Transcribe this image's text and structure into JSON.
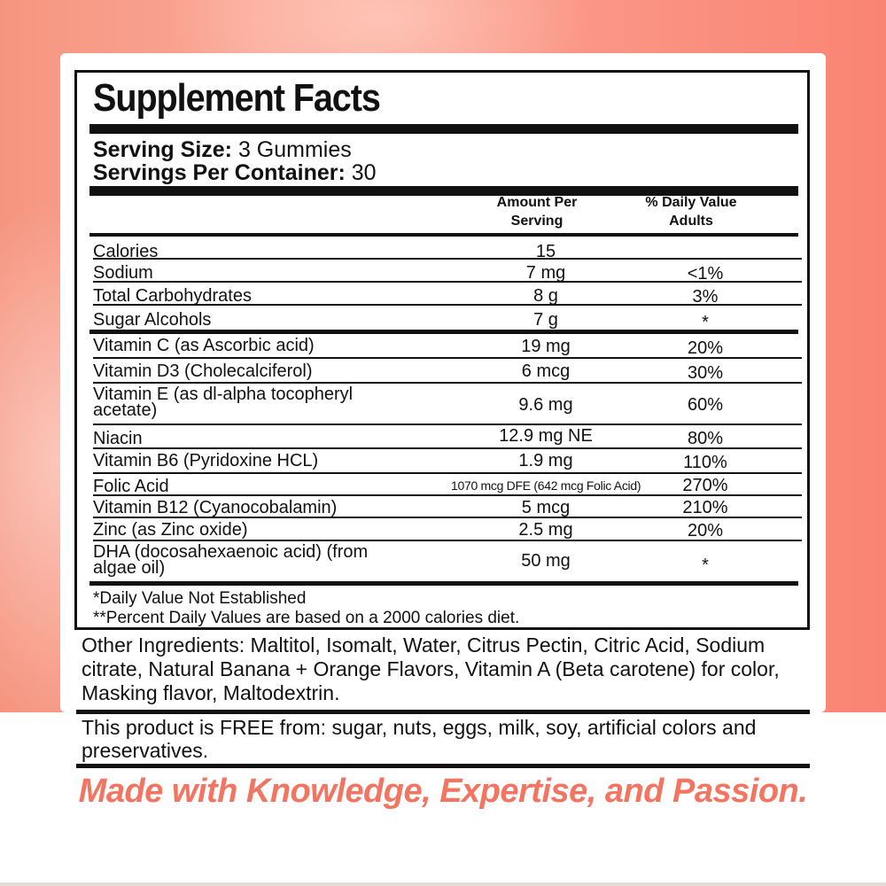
{
  "label": {
    "title": "Supplement Facts",
    "serving_size_label": "Serving Size:",
    "serving_size_value": "3 Gummies",
    "servings_per_container_label": "Servings Per Container:",
    "servings_per_container_value": "30",
    "col_amount_line1": "Amount Per",
    "col_amount_line2": "Serving",
    "col_dv_line1": "% Daily Value",
    "col_dv_line2": "Adults",
    "rows": [
      {
        "name": "Calories",
        "amount": "15",
        "dv": ""
      },
      {
        "name": "Sodium",
        "amount": "7 mg",
        "dv": "<1%"
      },
      {
        "name": "Total Carbohydrates",
        "amount": "8 g",
        "dv": "3%"
      },
      {
        "name": "Sugar Alcohols",
        "amount": "7 g",
        "dv": "*"
      },
      {
        "name": "Vitamin C (as Ascorbic acid)",
        "amount": "19 mg",
        "dv": "20%"
      },
      {
        "name": "Vitamin D3 (Cholecalciferol)",
        "amount": "6 mcg",
        "dv": "30%"
      },
      {
        "name_line1": "Vitamin E (as dl-alpha tocopheryl",
        "name_line2": "acetate)",
        "amount": "9.6 mg",
        "dv": "60%"
      },
      {
        "name": "Niacin",
        "amount": "12.9 mg NE",
        "dv": "80%"
      },
      {
        "name": "Vitamin B6 (Pyridoxine HCL)",
        "amount": "1.9 mg",
        "dv": "110%"
      },
      {
        "name": "Folic Acid",
        "amount": "1070 mcg DFE (642 mcg Folic Acid)",
        "dv": "270%"
      },
      {
        "name": "Vitamin B12 (Cyanocobalamin)",
        "amount": "5 mcg",
        "dv": "210%"
      },
      {
        "name": "Zinc (as Zinc oxide)",
        "amount": "2.5 mg",
        "dv": "20%"
      },
      {
        "name_line1": "DHA (docosahexaenoic acid) (from",
        "name_line2": "algae oil)",
        "amount": "50 mg",
        "dv": "*"
      }
    ],
    "footnote_1": "*Daily Value Not Established",
    "footnote_2": "**Percent Daily Values are based on a 2000 calories diet."
  },
  "other_ingredients": "Other Ingredients: Maltitol, Isomalt, Water, Citrus Pectin, Citric Acid, Sodium citrate, Natural Banana + Orange Flavors, Vitamin A (Beta carotene) for color, Masking flavor, Maltodextrin.",
  "free_from": "This product is FREE from: sugar, nuts, eggs, milk, soy, artificial colors and preservatives.",
  "tagline": "Made with Knowledge, Expertise, and Passion.",
  "colors": {
    "accent": "#f37460",
    "background_pink": "#fb9484",
    "ink": "#111111"
  }
}
